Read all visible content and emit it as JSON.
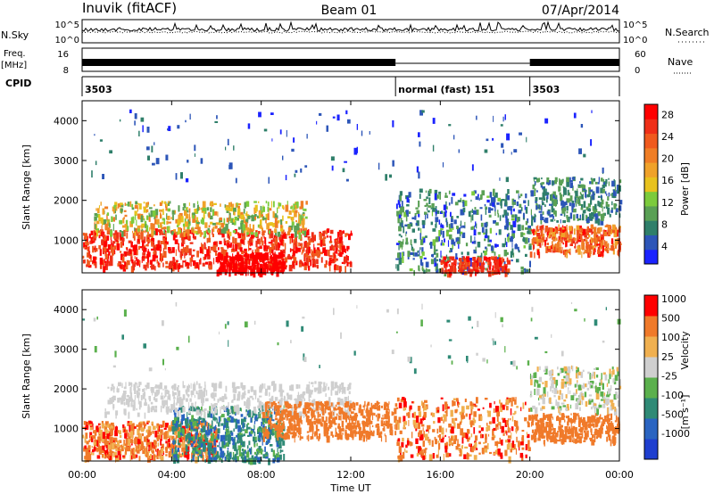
{
  "header": {
    "station": "Inuvik (fitACF)",
    "beam": "Beam 01",
    "date": "07/Apr/2014"
  },
  "top_panels": {
    "nsky_label": "N.Sky",
    "nsky_ticks": [
      "10^5",
      "10^0"
    ],
    "nsearch_label": "N.Search",
    "nsearch_ticks": [
      "10^5",
      "10^0"
    ],
    "freq_label": "Freq.",
    "freq_unit": "[MHz]",
    "freq_ticks": [
      "16",
      "8"
    ],
    "nave_label": "Nave",
    "nave_ticks": [
      "60",
      "0"
    ],
    "cpid_label": "CPID"
  },
  "cpid_segments": [
    {
      "label": "3503",
      "start": 0,
      "end": 14
    },
    {
      "label": "normal (fast) 151",
      "start": 14,
      "end": 20
    },
    {
      "label": "3503",
      "start": 20,
      "end": 24
    }
  ],
  "chart_data": [
    {
      "type": "heatmap",
      "name": "power",
      "ylabel": "Slant Range [km]",
      "xlabel": "Time UT",
      "xlim": [
        0,
        24
      ],
      "ylim": [
        180,
        4500
      ],
      "yticks": [
        "1000",
        "2000",
        "3000",
        "4000"
      ],
      "xticks": [
        "00:00",
        "04:00",
        "08:00",
        "12:00",
        "16:00",
        "20:00",
        "00:00"
      ],
      "colorbar": {
        "label": "Power [dB]",
        "ticks": [
          "4",
          "8",
          "12",
          "16",
          "20",
          "24",
          "28"
        ],
        "colors": [
          "#1b23ff",
          "#2d56b8",
          "#2f7f6a",
          "#5aa055",
          "#7ccb3c",
          "#e8c21e",
          "#f0a22a",
          "#f07e26",
          "#f05a1e",
          "#ef2f18",
          "#ff0000"
        ]
      }
    },
    {
      "type": "heatmap",
      "name": "velocity",
      "ylabel": "Slant Range [km]",
      "xlabel": "Time UT",
      "xlim": [
        0,
        24
      ],
      "ylim": [
        180,
        4500
      ],
      "yticks": [
        "1000",
        "2000",
        "3000",
        "4000"
      ],
      "xticks": [
        "00:00",
        "04:00",
        "08:00",
        "12:00",
        "16:00",
        "20:00",
        "00:00"
      ],
      "colorbar": {
        "label": "Velocity",
        "unit": "[m s⁻¹]",
        "ticks": [
          "1000",
          "500",
          "100",
          "25",
          "-25",
          "-100",
          "-500",
          "-1000"
        ],
        "colors": [
          "#1f3fcf",
          "#2a64c1",
          "#2f8a76",
          "#5bb04d",
          "#cfcfcf",
          "#f0b050",
          "#f07a2a",
          "#ff0000"
        ]
      }
    }
  ]
}
